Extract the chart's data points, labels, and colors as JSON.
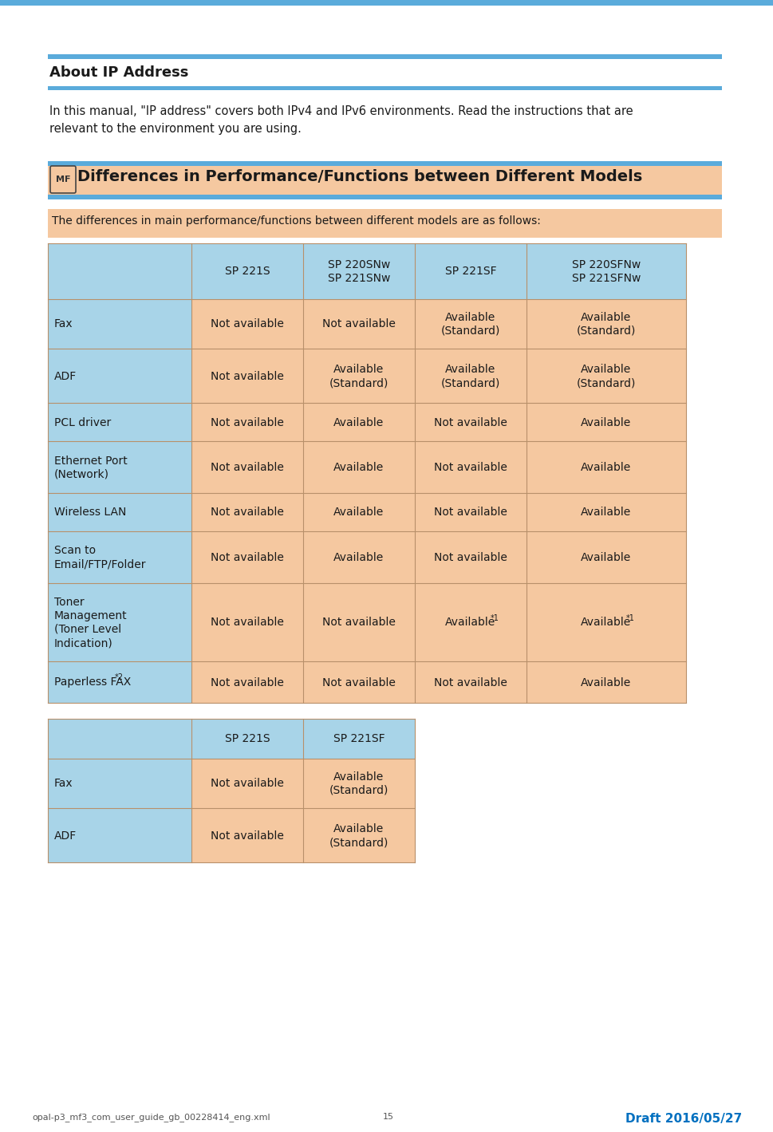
{
  "page_bg": "#ffffff",
  "top_bar_color": "#5aabdb",
  "section1_title": "About IP Address",
  "section1_title_bar_color": "#5aabdb",
  "section1_body_line1": "In this manual, \"IP address\" covers both IPv4 and IPv6 environments. Read the instructions that are",
  "section1_body_line2": "relevant to the environment you are using.",
  "section2_title": "Differences in Performance/Functions between Different Models",
  "section2_badge": "MF",
  "section2_title_bg": "#f5c8a0",
  "section2_title_bar_color": "#5aabdb",
  "table_bg": "#f5c8a0",
  "table_header_bg": "#a8d4e8",
  "border_color": "#b8906a",
  "text_color": "#1a1a1a",
  "intro_text": "The differences in main performance/functions between different models are as follows:",
  "intro_bg": "#f5c8a0",
  "main_table_headers": [
    "",
    "SP 221S",
    "SP 220SNw\nSP 221SNw",
    "SP 221SF",
    "SP 220SFNw\nSP 221SFNw"
  ],
  "main_table_rows": [
    [
      "Fax",
      "Not available",
      "Not available",
      "Available\n(Standard)",
      "Available\n(Standard)"
    ],
    [
      "ADF",
      "Not available",
      "Available\n(Standard)",
      "Available\n(Standard)",
      "Available\n(Standard)"
    ],
    [
      "PCL driver",
      "Not available",
      "Available",
      "Not available",
      "Available"
    ],
    [
      "Ethernet Port\n(Network)",
      "Not available",
      "Available",
      "Not available",
      "Available"
    ],
    [
      "Wireless LAN",
      "Not available",
      "Available",
      "Not available",
      "Available"
    ],
    [
      "Scan to\nEmail/FTP/Folder",
      "Not available",
      "Available",
      "Not available",
      "Available"
    ],
    [
      "Toner\nManagement\n(Toner Level\nIndication)",
      "Not available",
      "Not available",
      "Available^1",
      "Available^1"
    ],
    [
      "Paperless FAX^2",
      "Not available",
      "Not available",
      "Not available",
      "Available"
    ]
  ],
  "small_table_headers": [
    "",
    "SP 221S",
    "SP 221SF"
  ],
  "small_table_rows": [
    [
      "Fax",
      "Not available",
      "Available\n(Standard)"
    ],
    [
      "ADF",
      "Not available",
      "Available\n(Standard)"
    ]
  ],
  "footer_left": "opal-p3_mf3_com_user_guide_gb_00228414_eng.xml   15",
  "footer_right": "Draft 2016/05/27",
  "footer_right_color": "#0070c0"
}
